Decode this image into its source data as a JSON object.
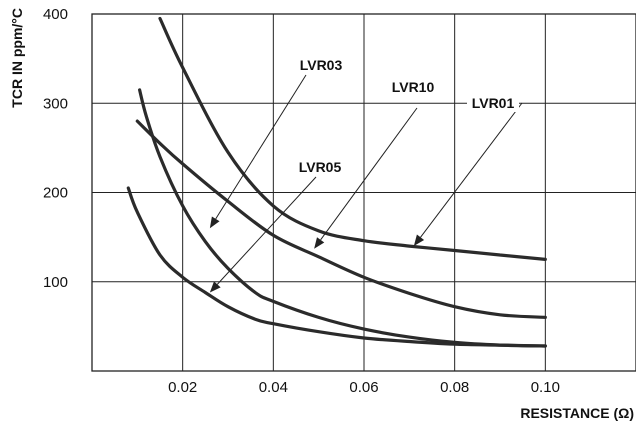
{
  "chart_data": {
    "type": "line",
    "title": "",
    "xlabel": "RESISTANCE (Ω)",
    "ylabel": "TCR IN ppm/°C",
    "xlim": [
      0,
      0.12
    ],
    "ylim": [
      0,
      400
    ],
    "x_ticks": [
      "0.02",
      "0.04",
      "0.06",
      "0.08",
      "0.10"
    ],
    "y_ticks": [
      "100",
      "200",
      "300",
      "400"
    ],
    "grid": true,
    "series": [
      {
        "name": "LVR01",
        "x": [
          0.015,
          0.02,
          0.03,
          0.04,
          0.05,
          0.06,
          0.07,
          0.08,
          0.09,
          0.1
        ],
        "y": [
          395,
          340,
          245,
          185,
          157,
          146,
          140,
          135,
          130,
          125
        ]
      },
      {
        "name": "LVR10",
        "x": [
          0.01,
          0.015,
          0.02,
          0.03,
          0.04,
          0.05,
          0.06,
          0.07,
          0.08,
          0.09,
          0.1
        ],
        "y": [
          280,
          255,
          232,
          190,
          152,
          128,
          105,
          87,
          72,
          63,
          60
        ]
      },
      {
        "name": "LVR03",
        "x": [
          0.0105,
          0.012,
          0.015,
          0.02,
          0.025,
          0.03,
          0.036,
          0.04,
          0.05,
          0.06,
          0.07,
          0.08,
          0.09,
          0.1
        ],
        "y": [
          315,
          285,
          240,
          185,
          145,
          115,
          88,
          78,
          60,
          47,
          38,
          32,
          29,
          28
        ]
      },
      {
        "name": "LVR05",
        "x": [
          0.008,
          0.01,
          0.015,
          0.02,
          0.025,
          0.03,
          0.036,
          0.04,
          0.05,
          0.06,
          0.07,
          0.08,
          0.09,
          0.1
        ],
        "y": [
          205,
          178,
          130,
          105,
          88,
          72,
          58,
          53,
          44,
          37,
          33,
          30,
          29,
          28
        ]
      }
    ],
    "annotations": [
      {
        "text": "LVR03",
        "target_x": 0.026,
        "target_y": 160
      },
      {
        "text": "LVR10",
        "target_x": 0.049,
        "target_y": 137
      },
      {
        "text": "LVR01",
        "target_x": 0.071,
        "target_y": 140
      },
      {
        "text": "LVR05",
        "target_x": 0.026,
        "target_y": 88
      }
    ]
  }
}
